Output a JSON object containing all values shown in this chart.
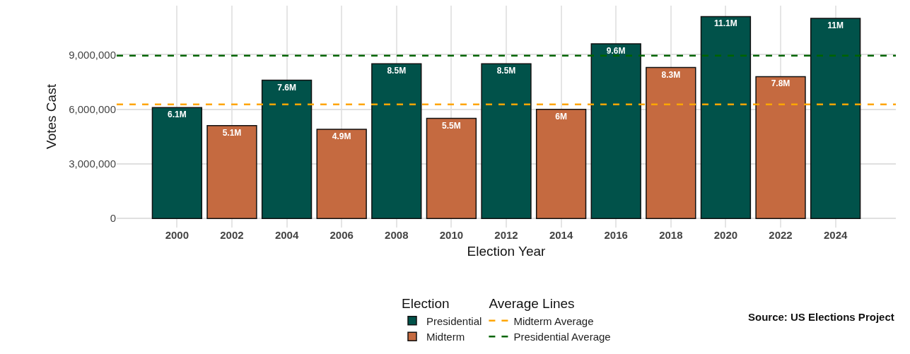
{
  "chart_data": {
    "type": "bar",
    "xlabel": "Election Year",
    "ylabel": "Votes Cast",
    "legend_title": "Election",
    "categories": [
      "2000",
      "2002",
      "2004",
      "2006",
      "2008",
      "2010",
      "2012",
      "2014",
      "2016",
      "2018",
      "2020",
      "2022",
      "2024"
    ],
    "series": [
      {
        "name": "Presidential",
        "color": "#01524a",
        "values": [
          6100000,
          null,
          7600000,
          null,
          8500000,
          null,
          8500000,
          null,
          9600000,
          null,
          11100000,
          null,
          11000000
        ],
        "value_labels": [
          "6.1M",
          null,
          "7.6M",
          null,
          "8.5M",
          null,
          "8.5M",
          null,
          "9.6M",
          null,
          "11.1M",
          null,
          "11M"
        ]
      },
      {
        "name": "Midterm",
        "color": "#c56a40",
        "values": [
          null,
          5100000,
          null,
          4900000,
          null,
          5500000,
          null,
          6000000,
          null,
          8300000,
          null,
          7800000,
          null
        ],
        "value_labels": [
          null,
          "5.1M",
          null,
          "4.9M",
          null,
          "5.5M",
          null,
          "6M",
          null,
          "8.3M",
          null,
          "7.8M",
          null
        ]
      }
    ],
    "ref_lines": [
      {
        "axis": "y",
        "value": 6270000,
        "label": "Midterm Average",
        "color": "#ffa500",
        "line_style": "dashed"
      },
      {
        "axis": "y",
        "value": 8950000,
        "label": "Presidential Average",
        "color": "#006400",
        "line_style": "dashed"
      }
    ],
    "annotations": [
      "Average Lines",
      "Source: US Elections Project"
    ],
    "ylim": [
      -500000,
      11700000
    ],
    "yticks": [
      {
        "value": 0,
        "label": "0"
      },
      {
        "value": 3000000,
        "label": "3,000,000"
      },
      {
        "value": 6000000,
        "label": "6,000,000"
      },
      {
        "value": 9000000,
        "label": "9,000,000"
      }
    ],
    "grid": true,
    "legend": "bottom"
  }
}
